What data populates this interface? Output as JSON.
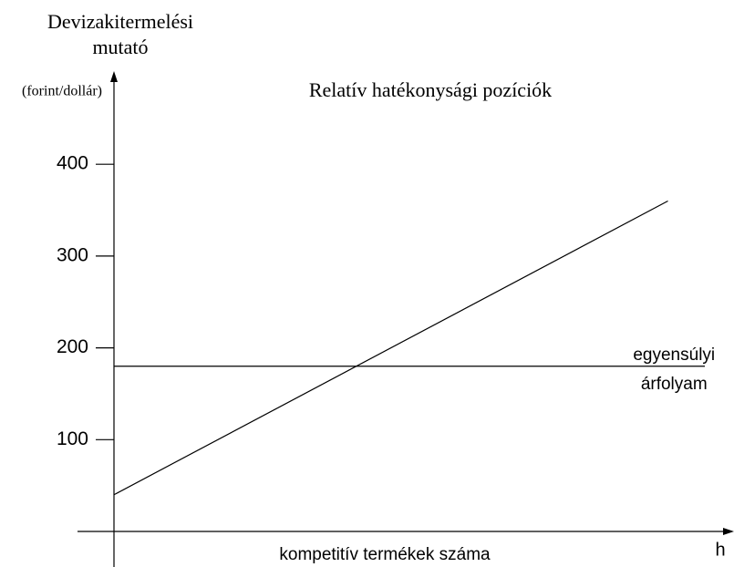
{
  "chart_data": {
    "type": "line",
    "title": "Relatív hatékonysági pozíciók",
    "y_label": [
      "Devizakitermelési",
      "mutató"
    ],
    "y_unit": "(forint/dollár)",
    "x_label": "kompetitív termékek száma",
    "x_axis_end_label": "h",
    "xlim": [
      0,
      100
    ],
    "ylim": [
      0,
      500
    ],
    "yticks": [
      100,
      200,
      300,
      400
    ],
    "series": [
      {
        "color": "#000000",
        "x": [
          0,
          90
        ],
        "values": [
          40,
          360
        ]
      },
      {
        "color": "#000000",
        "x": [
          0,
          96
        ],
        "values": [
          180,
          180
        ]
      }
    ],
    "annotations": [
      {
        "lines": [
          "egyensúlyi",
          "árfolyam"
        ],
        "x": 91,
        "y": 180
      }
    ]
  }
}
